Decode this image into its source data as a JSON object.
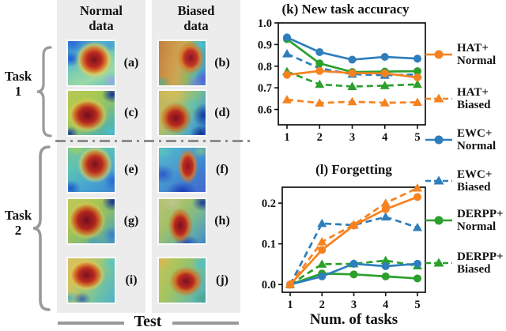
{
  "left_panel": {
    "column_headers": [
      [
        "Normal",
        "data"
      ],
      [
        "Biased",
        "data"
      ]
    ],
    "task_labels": [
      [
        "Task",
        "1"
      ],
      [
        "Task",
        "2"
      ]
    ],
    "image_labels": [
      "(a)",
      "(b)",
      "(c)",
      "(d)",
      "(e)",
      "(f)",
      "(g)",
      "(h)",
      "(i)",
      "(j)"
    ],
    "footer_label": "Test"
  },
  "chart_data": [
    {
      "type": "line",
      "title": "(k) New task accuracy",
      "xlabel": "",
      "ylabel": "",
      "x": [
        1,
        2,
        3,
        4,
        5
      ],
      "xtick_labels": [
        "1",
        "2",
        "3",
        "4",
        "5"
      ],
      "yticks": [
        0.6,
        0.7,
        0.8,
        0.9,
        1.0
      ],
      "ytick_labels": [
        "0.6",
        "0.7",
        "0.8",
        "0.9",
        "1.0"
      ],
      "ylim": [
        0.529,
        1.0
      ],
      "grid": false,
      "legend_position": "right",
      "series": [
        {
          "name": "HAT+Normal",
          "color": "#F6821F",
          "line": "solid",
          "marker": "circle",
          "values": [
            0.76,
            0.778,
            0.768,
            0.767,
            0.748
          ]
        },
        {
          "name": "HAT+Biased",
          "color": "#F6821F",
          "line": "dashed",
          "marker": "triangle",
          "values": [
            0.645,
            0.63,
            0.636,
            0.631,
            0.633
          ]
        },
        {
          "name": "EWC+Normal",
          "color": "#2E7EBC",
          "line": "solid",
          "marker": "circle",
          "values": [
            0.933,
            0.865,
            0.83,
            0.843,
            0.835
          ]
        },
        {
          "name": "EWC+Biased",
          "color": "#2E7EBC",
          "line": "dashed",
          "marker": "triangle",
          "values": [
            0.857,
            0.79,
            0.763,
            0.758,
            0.762
          ]
        },
        {
          "name": "DERPP+Normal",
          "color": "#2CA02C",
          "line": "solid",
          "marker": "circle",
          "values": [
            0.925,
            0.813,
            0.773,
            0.775,
            0.777
          ]
        },
        {
          "name": "DERPP+Biased",
          "color": "#2CA02C",
          "line": "dashed",
          "marker": "triangle",
          "values": [
            0.775,
            0.716,
            0.706,
            0.71,
            0.716
          ]
        }
      ]
    },
    {
      "type": "line",
      "title": "(l) Forgetting",
      "xlabel": "Num. of tasks",
      "ylabel": "",
      "x": [
        1,
        2,
        3,
        4,
        5
      ],
      "xtick_labels": [
        "1",
        "2",
        "3",
        "4",
        "5"
      ],
      "yticks": [
        0.0,
        0.1,
        0.2
      ],
      "ytick_labels": [
        "0.0",
        "0.1",
        "0.2"
      ],
      "ylim": [
        -0.019,
        0.239
      ],
      "grid": false,
      "legend_position": "right",
      "series": [
        {
          "name": "HAT+Normal",
          "color": "#F6821F",
          "line": "solid",
          "marker": "circle",
          "values": [
            0.0,
            0.085,
            0.145,
            0.185,
            0.215
          ]
        },
        {
          "name": "HAT+Biased",
          "color": "#F6821F",
          "line": "dashed",
          "marker": "triangle",
          "values": [
            0.0,
            0.105,
            0.147,
            0.2,
            0.237
          ]
        },
        {
          "name": "EWC+Normal",
          "color": "#2E7EBC",
          "line": "solid",
          "marker": "circle",
          "values": [
            0.0,
            0.02,
            0.051,
            0.045,
            0.051
          ]
        },
        {
          "name": "EWC+Biased",
          "color": "#2E7EBC",
          "line": "dashed",
          "marker": "triangle",
          "values": [
            0.0,
            0.15,
            0.146,
            0.166,
            0.14
          ]
        },
        {
          "name": "DERPP+Normal",
          "color": "#2CA02C",
          "line": "solid",
          "marker": "circle",
          "values": [
            0.0,
            0.027,
            0.025,
            0.02,
            0.015
          ]
        },
        {
          "name": "DERPP+Biased",
          "color": "#2CA02C",
          "line": "dashed",
          "marker": "triangle",
          "values": [
            0.0,
            0.05,
            0.051,
            0.059,
            0.046
          ]
        }
      ]
    }
  ],
  "legend": {
    "items": [
      {
        "line1": "HAT+",
        "line2": "Normal",
        "color": "#F6821F",
        "line": "solid",
        "marker": "circle"
      },
      {
        "line1": "HAT+",
        "line2": "Biased",
        "color": "#F6821F",
        "line": "dashed",
        "marker": "triangle"
      },
      {
        "line1": "EWC+",
        "line2": "Normal",
        "color": "#2E7EBC",
        "line": "solid",
        "marker": "circle"
      },
      {
        "line1": "EWC+",
        "line2": "Biased",
        "color": "#2E7EBC",
        "line": "dashed",
        "marker": "triangle"
      },
      {
        "line1": "DERPP+",
        "line2": "Normal",
        "color": "#2CA02C",
        "line": "solid",
        "marker": "circle"
      },
      {
        "line1": "DERPP+",
        "line2": "Biased",
        "color": "#2CA02C",
        "line": "dashed",
        "marker": "triangle"
      }
    ]
  }
}
